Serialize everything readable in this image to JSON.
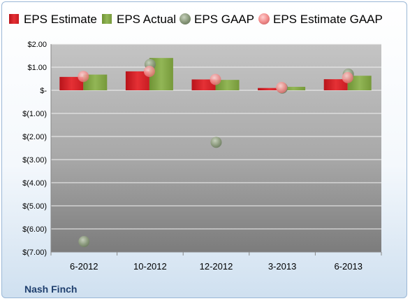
{
  "company": "Nash Finch",
  "colors": {
    "estimate": "#d92228",
    "actual": "#7fa03f",
    "gaap": "#8a9a7a",
    "estimate_gaap": "#f08a8a"
  },
  "chart_data": {
    "type": "bar",
    "categories": [
      "6-2012",
      "10-2012",
      "12-2012",
      "3-2013",
      "6-2013"
    ],
    "series": [
      {
        "name": "EPS Estimate",
        "kind": "bar",
        "values": [
          0.58,
          0.82,
          0.47,
          0.1,
          0.48
        ]
      },
      {
        "name": "EPS Actual",
        "kind": "bar",
        "values": [
          0.68,
          1.4,
          0.45,
          0.15,
          0.63
        ]
      },
      {
        "name": "EPS GAAP",
        "kind": "point",
        "values": [
          -6.55,
          1.12,
          -2.25,
          0.1,
          0.7
        ]
      },
      {
        "name": "EPS Estimate GAAP",
        "kind": "point",
        "values": [
          0.6,
          0.82,
          0.47,
          0.12,
          0.55
        ]
      }
    ],
    "y_ticks": [
      2,
      1,
      0,
      -1,
      -2,
      -3,
      -4,
      -5,
      -6,
      -7
    ],
    "y_tick_labels": [
      "$2.00",
      "$1.00",
      "$-",
      "$(1.00)",
      "$(2.00)",
      "$(3.00)",
      "$(4.00)",
      "$(5.00)",
      "$(6.00)",
      "$(7.00)"
    ],
    "ylim": [
      -7,
      2
    ],
    "grid": true,
    "legend": "top"
  }
}
